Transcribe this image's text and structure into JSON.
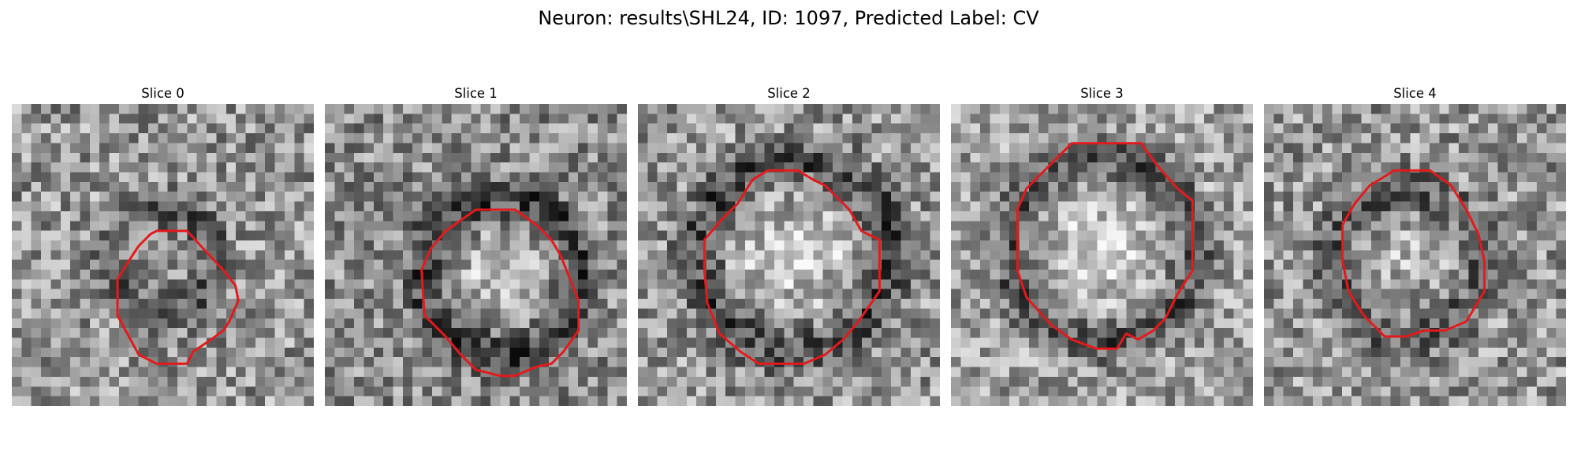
{
  "figure": {
    "title": "Neuron: results\\SHL24, ID: 1097, Predicted Label: CV"
  },
  "slices": [
    {
      "title": "Slice 0"
    },
    {
      "title": "Slice 1"
    },
    {
      "title": "Slice 2"
    },
    {
      "title": "Slice 3"
    },
    {
      "title": "Slice 4"
    }
  ],
  "colors": {
    "contour": "#e31a1c",
    "background": "#ffffff"
  }
}
